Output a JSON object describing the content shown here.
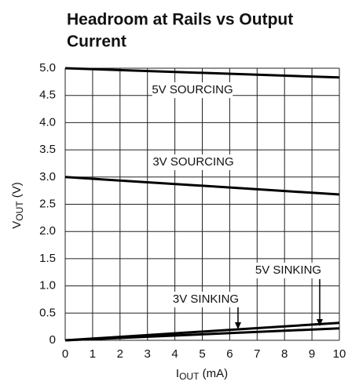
{
  "chart_data": {
    "type": "line",
    "title": [
      "Headroom at Rails vs Output",
      "Current"
    ],
    "xlabel": {
      "main": "I",
      "sub": "OUT",
      "rest": " (mA)"
    },
    "ylabel": {
      "main": "V",
      "sub": "OUT",
      "rest": " (V)"
    },
    "x": [
      0,
      10
    ],
    "series": [
      {
        "name": "5V SOURCING",
        "color": "#000000",
        "values": [
          5.0,
          4.83
        ]
      },
      {
        "name": "3V SOURCING",
        "color": "#000000",
        "values": [
          3.0,
          2.68
        ]
      },
      {
        "name": "5V SINKING",
        "color": "#000000",
        "values": [
          0,
          0.32
        ]
      },
      {
        "name": "3V SINKING",
        "color": "#000000",
        "values": [
          0,
          0.22
        ]
      }
    ],
    "xlim": [
      0,
      10
    ],
    "xticks": [
      0,
      1,
      2,
      3,
      4,
      5,
      6,
      7,
      8,
      9,
      10
    ],
    "ylim": [
      0,
      5
    ],
    "yticks": [
      0,
      0.5,
      {
        "value": 1,
        "label": "1.0"
      },
      1.5,
      {
        "value": 2,
        "label": "2.0"
      },
      2.5,
      {
        "value": 3,
        "label": "3.0"
      },
      3.5,
      {
        "value": 4,
        "label": "4.0"
      },
      4.5,
      {
        "value": 5,
        "label": "5.0"
      }
    ],
    "grid": true
  }
}
